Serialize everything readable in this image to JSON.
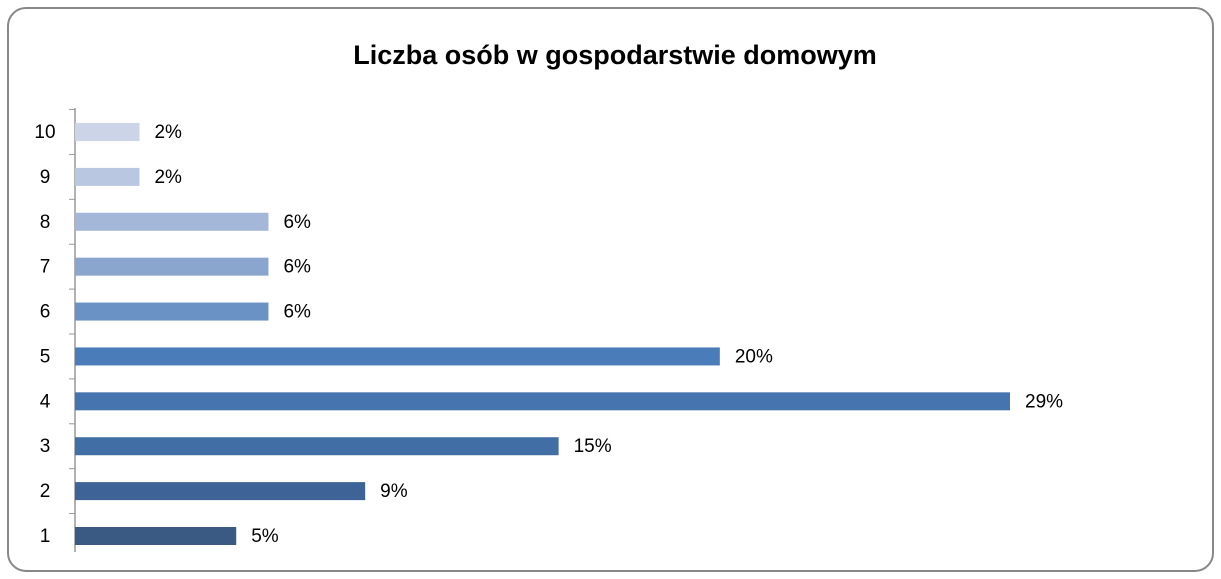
{
  "chart_data": {
    "type": "barh",
    "title": "Liczba osób w gospodarstwie domowym",
    "categories": [
      "1",
      "2",
      "3",
      "4",
      "5",
      "6",
      "7",
      "8",
      "9",
      "10"
    ],
    "values": [
      5,
      9,
      15,
      29,
      20,
      6,
      6,
      6,
      2,
      2
    ],
    "value_labels": [
      "5%",
      "9%",
      "15%",
      "29%",
      "20%",
      "6%",
      "6%",
      "6%",
      "2%",
      "2%"
    ],
    "colors": [
      "#3a5a83",
      "#3e6397",
      "#426ea6",
      "#4674ae",
      "#4a7cb9",
      "#6a92c5",
      "#8aa6cf",
      "#a4b7d8",
      "#bac7e0",
      "#ccd5e7"
    ]
  }
}
